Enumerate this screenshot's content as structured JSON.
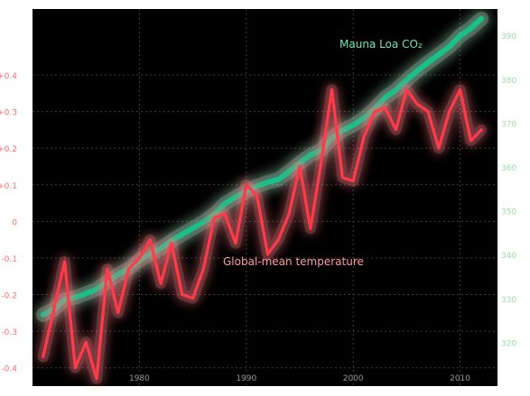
{
  "chart_data": {
    "type": "line",
    "title": "",
    "x": [
      1971,
      1972,
      1973,
      1974,
      1975,
      1976,
      1977,
      1978,
      1979,
      1980,
      1981,
      1982,
      1983,
      1984,
      1985,
      1986,
      1987,
      1988,
      1989,
      1990,
      1991,
      1992,
      1993,
      1994,
      1995,
      1996,
      1997,
      1998,
      1999,
      2000,
      2001,
      2002,
      2003,
      2004,
      2005,
      2006,
      2007,
      2008,
      2009,
      2010,
      2011,
      2012
    ],
    "x_ticks": [
      1980,
      1990,
      2000,
      2010
    ],
    "x_tick_labels": [
      "1980",
      "1990",
      "2000",
      "2010"
    ],
    "xlim": [
      1970,
      2013.5
    ],
    "left_axis": {
      "ylim": [
        -0.45,
        0.58
      ],
      "ticks": [
        -0.4,
        -0.3,
        -0.2,
        -0.1,
        0,
        0.1,
        0.2,
        0.3,
        0.4
      ],
      "tick_labels": [
        "-0.4",
        "-0.3",
        "-0.2",
        "-0.1",
        "0",
        "+0.1",
        "+0.2",
        "+0.3",
        "+0.4"
      ],
      "color": "#ff6b72"
    },
    "right_axis": {
      "ylim": [
        310,
        396
      ],
      "ticks": [
        320,
        330,
        340,
        350,
        360,
        370,
        380,
        390
      ],
      "tick_labels": [
        "320",
        "330",
        "340",
        "350",
        "360",
        "370",
        "380",
        "390"
      ],
      "color": "#9fd8b0"
    },
    "series": [
      {
        "name": "Mauna Loa CO₂",
        "axis": "right",
        "color": "#18c08a",
        "values": [
          326.3,
          327.5,
          329.7,
          330.2,
          331.1,
          332.1,
          333.8,
          335.4,
          336.8,
          338.7,
          340.1,
          341.4,
          343.1,
          344.6,
          346.0,
          347.4,
          349.2,
          351.6,
          353.1,
          354.4,
          355.6,
          356.5,
          357.1,
          358.9,
          360.9,
          362.7,
          363.8,
          366.6,
          368.3,
          369.5,
          371.1,
          373.2,
          375.8,
          377.5,
          379.8,
          381.9,
          383.8,
          385.6,
          387.4,
          389.9,
          391.6,
          393.8
        ]
      },
      {
        "name": "Global-mean temperature",
        "axis": "left",
        "color": "#ff3b4a",
        "values": [
          -0.37,
          -0.24,
          -0.11,
          -0.4,
          -0.33,
          -0.43,
          -0.13,
          -0.25,
          -0.13,
          -0.1,
          -0.05,
          -0.17,
          -0.06,
          -0.2,
          -0.21,
          -0.13,
          0.01,
          0.02,
          -0.06,
          0.1,
          0.07,
          -0.09,
          -0.05,
          0.02,
          0.15,
          -0.02,
          0.16,
          0.36,
          0.12,
          0.11,
          0.23,
          0.3,
          0.31,
          0.25,
          0.36,
          0.32,
          0.3,
          0.2,
          0.3,
          0.36,
          0.22,
          0.25
        ]
      }
    ],
    "annotations": [
      {
        "text": "Mauna Loa CO₂",
        "series": 0
      },
      {
        "text": "Global-mean temperature",
        "series": 1
      }
    ],
    "grid": true,
    "background": "#000000"
  }
}
